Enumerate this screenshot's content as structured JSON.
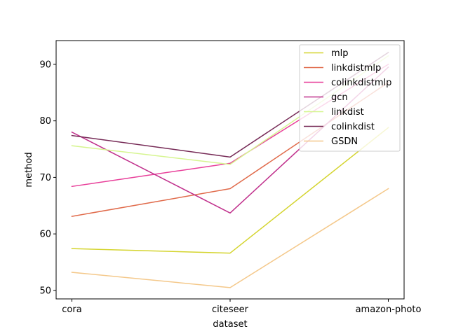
{
  "chart_data": {
    "type": "line",
    "title": "",
    "xlabel": "dataset",
    "ylabel": "method",
    "categories": [
      "cora",
      "citeseer",
      "amazon-photo"
    ],
    "yticks": [
      50,
      60,
      70,
      80,
      90
    ],
    "ylim": [
      48.5,
      94.2
    ],
    "grid": false,
    "legend_position": "top-right",
    "series": [
      {
        "name": "mlp",
        "color": "#d4d42e",
        "values": [
          57.4,
          56.6,
          78.8
        ]
      },
      {
        "name": "linkdistmlp",
        "color": "#e06a4a",
        "values": [
          63.1,
          68.0,
          86.8
        ]
      },
      {
        "name": "colinkdistmlp",
        "color": "#e8409a",
        "values": [
          68.4,
          72.5,
          90.0
        ]
      },
      {
        "name": "gcn",
        "color": "#c0308c",
        "values": [
          78.0,
          63.7,
          89.5
        ]
      },
      {
        "name": "linkdist",
        "color": "#d6f590",
        "values": [
          75.6,
          72.3,
          91.5
        ]
      },
      {
        "name": "colinkdist",
        "color": "#762a56",
        "values": [
          77.4,
          73.6,
          92.1
        ]
      },
      {
        "name": "GSDN",
        "color": "#f4c88a",
        "values": [
          53.2,
          50.5,
          68.0
        ]
      }
    ]
  }
}
